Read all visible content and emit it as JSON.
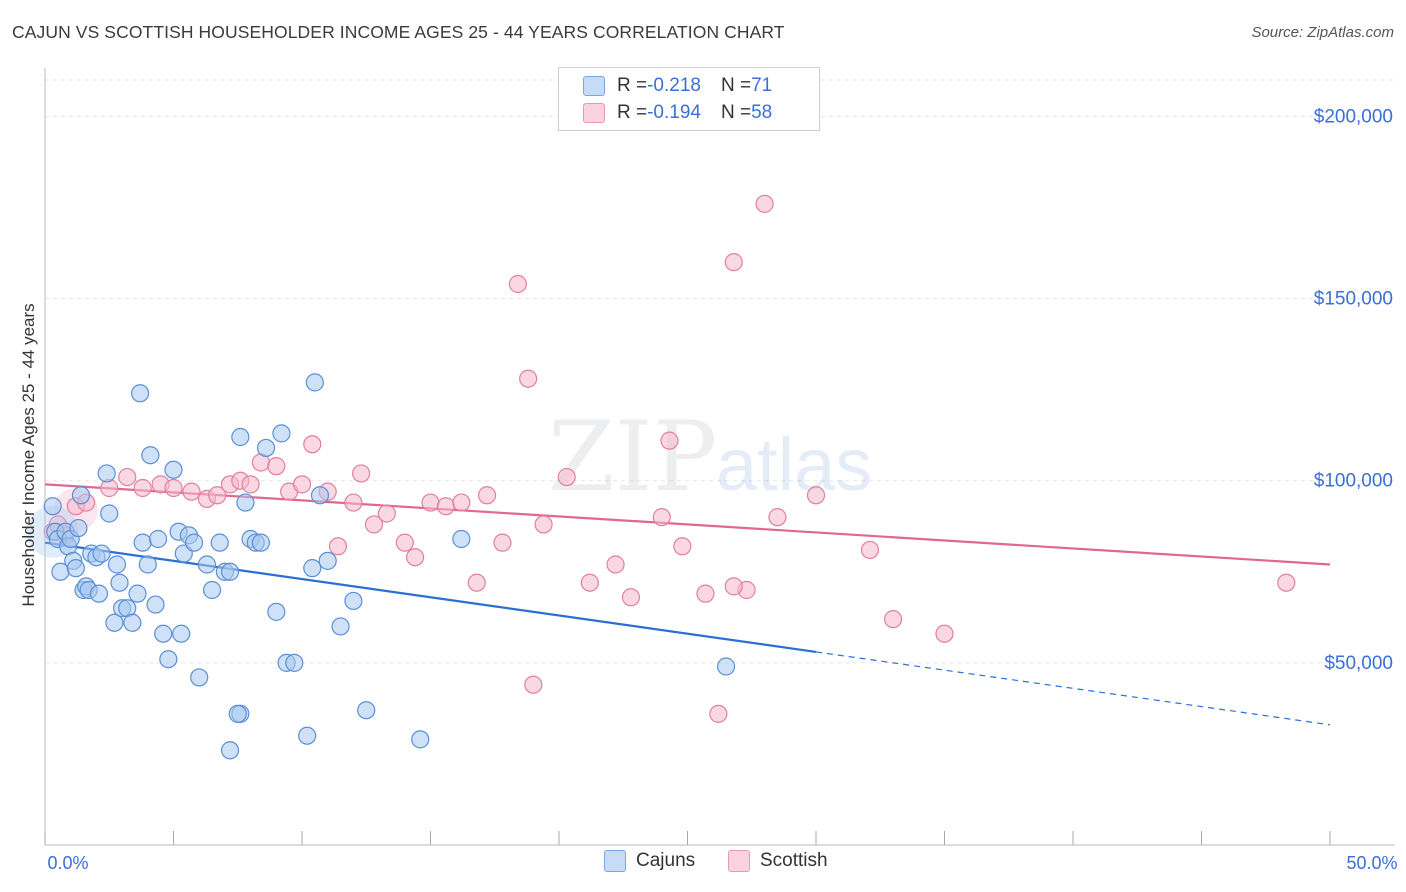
{
  "title": "CAJUN VS SCOTTISH HOUSEHOLDER INCOME AGES 25 - 44 YEARS CORRELATION CHART",
  "source": "Source: ZipAtlas.com",
  "watermark": {
    "zip": "ZIP",
    "atlas": "atlas"
  },
  "legend": {
    "rows": [
      {
        "r_label": "R = ",
        "r_value": "-0.218",
        "n_label": "N = ",
        "n_value": "71",
        "color": "#a8c8f0"
      },
      {
        "r_label": "R = ",
        "r_value": "-0.194",
        "n_label": "N = ",
        "n_value": "58",
        "color": "#f6b8cc"
      }
    ]
  },
  "bottom_legend": {
    "cajuns": "Cajuns",
    "scottish": "Scottish"
  },
  "axes": {
    "ylabel": "Householder Income Ages 25 - 44 years",
    "x_min_label": "0.0%",
    "x_max_label": "50.0%",
    "y_ticks": [
      "$200,000",
      "$150,000",
      "$100,000",
      "$50,000"
    ]
  },
  "colors": {
    "cajun_fill": "#a8c8f0",
    "cajun_stroke": "#5b8fd6",
    "cajun_line": "#2a6fd6",
    "scottish_fill": "#f6b8cc",
    "scottish_stroke": "#e27fa0",
    "scottish_line": "#e06890",
    "tick_label": "#3a6fd8",
    "grid": "#e6e6e6"
  },
  "chart_data": {
    "type": "scatter",
    "xlim": [
      0,
      50
    ],
    "ylim": [
      0,
      210000
    ],
    "y_tick_values": [
      50000,
      100000,
      150000,
      200000
    ],
    "grid": "horizontal dashed",
    "legend_position": "top-center",
    "series": [
      {
        "name": "Cajuns",
        "points": [
          [
            0.3,
            93000
          ],
          [
            0.4,
            86000
          ],
          [
            0.5,
            84000
          ],
          [
            0.6,
            75000
          ],
          [
            0.8,
            86000
          ],
          [
            0.9,
            82000
          ],
          [
            1.0,
            84000
          ],
          [
            1.1,
            78000
          ],
          [
            1.2,
            76000
          ],
          [
            1.3,
            87000
          ],
          [
            1.4,
            96000
          ],
          [
            1.5,
            70000
          ],
          [
            1.6,
            71000
          ],
          [
            1.7,
            70000
          ],
          [
            1.8,
            80000
          ],
          [
            2.0,
            79000
          ],
          [
            2.1,
            69000
          ],
          [
            2.2,
            80000
          ],
          [
            2.4,
            102000
          ],
          [
            2.5,
            91000
          ],
          [
            2.7,
            61000
          ],
          [
            2.8,
            77000
          ],
          [
            2.9,
            72000
          ],
          [
            3.0,
            65000
          ],
          [
            3.2,
            65000
          ],
          [
            3.4,
            61000
          ],
          [
            3.6,
            69000
          ],
          [
            3.7,
            124000
          ],
          [
            3.8,
            83000
          ],
          [
            4.0,
            77000
          ],
          [
            4.1,
            107000
          ],
          [
            4.3,
            66000
          ],
          [
            4.4,
            84000
          ],
          [
            4.6,
            58000
          ],
          [
            4.8,
            51000
          ],
          [
            5.0,
            103000
          ],
          [
            5.2,
            86000
          ],
          [
            5.3,
            58000
          ],
          [
            5.4,
            80000
          ],
          [
            5.6,
            85000
          ],
          [
            5.8,
            83000
          ],
          [
            6.0,
            46000
          ],
          [
            6.3,
            77000
          ],
          [
            6.5,
            70000
          ],
          [
            6.8,
            83000
          ],
          [
            7.0,
            75000
          ],
          [
            7.2,
            75000
          ],
          [
            7.6,
            36000
          ],
          [
            7.8,
            94000
          ],
          [
            8.0,
            84000
          ],
          [
            8.2,
            83000
          ],
          [
            8.4,
            83000
          ],
          [
            8.6,
            109000
          ],
          [
            9.0,
            64000
          ],
          [
            9.4,
            50000
          ],
          [
            9.7,
            50000
          ],
          [
            10.2,
            30000
          ],
          [
            10.4,
            76000
          ],
          [
            10.7,
            96000
          ],
          [
            11.0,
            78000
          ],
          [
            11.5,
            60000
          ],
          [
            12.0,
            67000
          ],
          [
            12.5,
            37000
          ],
          [
            14.6,
            29000
          ],
          [
            16.2,
            84000
          ],
          [
            7.6,
            112000
          ],
          [
            9.2,
            113000
          ],
          [
            10.5,
            127000
          ],
          [
            7.2,
            26000
          ],
          [
            26.5,
            49000
          ],
          [
            7.5,
            36000
          ]
        ]
      },
      {
        "name": "Scottish",
        "points": [
          [
            0.3,
            86000
          ],
          [
            0.5,
            88000
          ],
          [
            0.8,
            85000
          ],
          [
            1.2,
            93000
          ],
          [
            1.6,
            94000
          ],
          [
            2.5,
            98000
          ],
          [
            3.2,
            101000
          ],
          [
            3.8,
            98000
          ],
          [
            4.5,
            99000
          ],
          [
            5.0,
            98000
          ],
          [
            5.7,
            97000
          ],
          [
            6.3,
            95000
          ],
          [
            6.7,
            96000
          ],
          [
            7.2,
            99000
          ],
          [
            7.6,
            100000
          ],
          [
            8.0,
            99000
          ],
          [
            8.4,
            105000
          ],
          [
            9.0,
            104000
          ],
          [
            9.5,
            97000
          ],
          [
            10.0,
            99000
          ],
          [
            10.4,
            110000
          ],
          [
            11.0,
            97000
          ],
          [
            11.4,
            82000
          ],
          [
            12.0,
            94000
          ],
          [
            12.3,
            102000
          ],
          [
            12.8,
            88000
          ],
          [
            13.3,
            91000
          ],
          [
            14.0,
            83000
          ],
          [
            14.4,
            79000
          ],
          [
            15.0,
            94000
          ],
          [
            15.6,
            93000
          ],
          [
            16.2,
            94000
          ],
          [
            16.8,
            72000
          ],
          [
            17.2,
            96000
          ],
          [
            17.8,
            83000
          ],
          [
            18.4,
            154000
          ],
          [
            18.8,
            128000
          ],
          [
            19.4,
            88000
          ],
          [
            20.3,
            101000
          ],
          [
            21.2,
            72000
          ],
          [
            22.2,
            77000
          ],
          [
            22.8,
            68000
          ],
          [
            24.0,
            90000
          ],
          [
            24.3,
            111000
          ],
          [
            24.8,
            82000
          ],
          [
            25.7,
            69000
          ],
          [
            26.2,
            36000
          ],
          [
            26.8,
            160000
          ],
          [
            27.3,
            70000
          ],
          [
            28.0,
            176000
          ],
          [
            28.5,
            90000
          ],
          [
            30.0,
            96000
          ],
          [
            32.1,
            81000
          ],
          [
            33.0,
            62000
          ],
          [
            35.0,
            58000
          ],
          [
            48.3,
            72000
          ],
          [
            19.0,
            44000
          ],
          [
            26.8,
            71000
          ]
        ]
      }
    ],
    "trend_lines": [
      {
        "series": "Cajuns",
        "x": [
          0,
          30
        ],
        "y": [
          83000,
          53000
        ],
        "dashed_extension_to": 50
      },
      {
        "series": "Scottish",
        "x": [
          0,
          50
        ],
        "y": [
          99000,
          77000
        ]
      }
    ]
  }
}
